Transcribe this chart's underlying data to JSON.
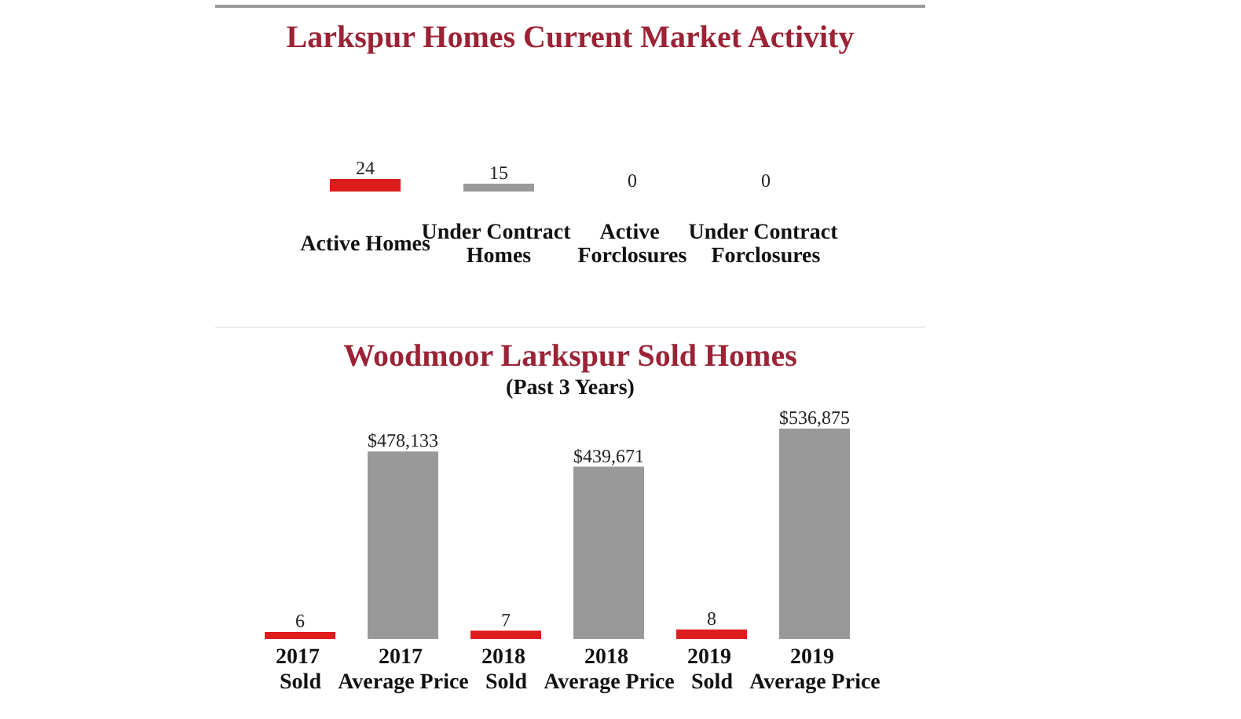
{
  "chart_data": [
    {
      "type": "bar",
      "title": "Larkspur Homes Current Market Activity",
      "categories": [
        "Active Homes",
        "Under Contract\nHomes",
        "Active\nForclosures",
        "Under Contract\nForclosures"
      ],
      "values": [
        24,
        15,
        0,
        0
      ],
      "colors": [
        "#dd1c1c",
        "#999999",
        "#dd1c1c",
        "#999999"
      ],
      "data_labels": true,
      "tick_labels": "x"
    },
    {
      "type": "bar",
      "title": "Woodmoor Larkspur Sold Homes",
      "subtitle": "(Past 3 Years)",
      "categories": [
        "2017\nSold",
        "2017\nAverage Price",
        "2018\nSold",
        "2018\nAverage Price",
        "2019\nSold",
        "2019\nAverage Price"
      ],
      "series": [
        {
          "color": "#dd1c1c",
          "axis": "y2",
          "values": [
            6,
            null,
            7,
            null,
            8,
            null
          ],
          "value_labels": [
            "6",
            null,
            "7",
            null,
            "8",
            null
          ]
        },
        {
          "color": "#999999",
          "values": [
            null,
            478133,
            null,
            439671,
            null,
            536875
          ],
          "value_labels": [
            null,
            "$478,133",
            null,
            "$439,671",
            null,
            "$536,875"
          ]
        }
      ],
      "y2lim": [
        0,
        180
      ],
      "tick_labels": "x"
    }
  ]
}
